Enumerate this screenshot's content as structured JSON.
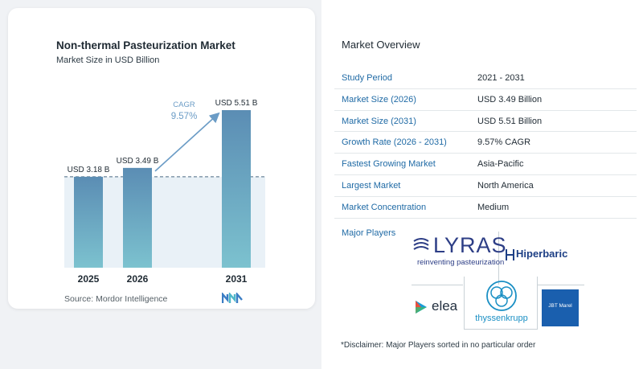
{
  "chart_data": {
    "type": "bar",
    "title": "Non-thermal Pasteurization Market",
    "subtitle": "Market Size in USD Billion",
    "categories": [
      "2025",
      "2026",
      "2031"
    ],
    "values": [
      3.18,
      3.49,
      5.51
    ],
    "data_labels": [
      "USD 3.18 B",
      "USD 3.49 B",
      "USD 5.51 B"
    ],
    "ylim": [
      0,
      5.51
    ],
    "annotation": {
      "label": "CAGR",
      "value": "9.57%"
    },
    "grid": false,
    "bar_color_top": "#5b8db4",
    "bar_color_bottom": "#7cc2cf"
  },
  "source": "Source: Mordor Intelligence",
  "overview": {
    "title": "Market Overview",
    "rows": [
      {
        "key": "Study Period",
        "value": "2021 - 2031"
      },
      {
        "key": "Market Size (2026)",
        "value": "USD 3.49 Billion"
      },
      {
        "key": "Market Size (2031)",
        "value": "USD 5.51 Billion"
      },
      {
        "key": "Growth Rate (2026 - 2031)",
        "value": "9.57% CAGR"
      },
      {
        "key": "Fastest Growing Market",
        "value": "Asia-Pacific"
      },
      {
        "key": "Largest Market",
        "value": "North America"
      },
      {
        "key": "Market Concentration",
        "value": "Medium"
      }
    ]
  },
  "players": {
    "title": "Major Players",
    "logos": [
      {
        "name": "LYRAS",
        "tagline": "reinventing pasteurization"
      },
      {
        "name": "Hiperbaric"
      },
      {
        "name": "elea"
      },
      {
        "name": "thyssenkrupp"
      },
      {
        "name": "JBT Marel"
      }
    ]
  },
  "disclaimer": "*Disclaimer: Major Players sorted in no particular order",
  "colors": {
    "accent_blue": "#1f6aa5",
    "arrow": "#6b9cc6",
    "baseline_shade": "#dbe8f2"
  }
}
